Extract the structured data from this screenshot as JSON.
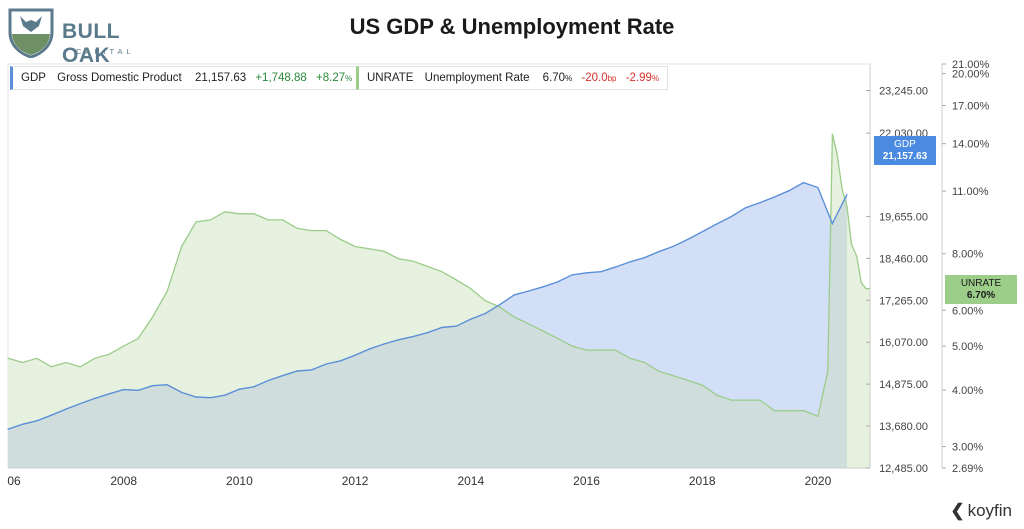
{
  "brand": {
    "name": "BULL OAK",
    "tagline": "CAPITAL",
    "footer_brand": "koyfin"
  },
  "colors": {
    "gdp_line": "#5b8fd8",
    "gdp_fill": "#d2dff7",
    "unrate_line": "#9bcc8a",
    "unrate_fill": "#e6f2df",
    "overlap_fill": "#cfdedc",
    "gdp_badge": "#4a8ae0",
    "unrate_badge": "#9ccd89"
  },
  "legend": {
    "gdp": {
      "ticker": "GDP",
      "name": "Gross Domestic Product",
      "value": "21,157.63",
      "change": "+1,748.88",
      "pct": "+8.27",
      "pct_unit": "%"
    },
    "unrate": {
      "ticker": "UNRATE",
      "name": "Unemployment Rate",
      "value": "6.70",
      "value_unit": "%",
      "change": "-20.0",
      "change_unit": "bp",
      "pct": "-2.99",
      "pct_unit": "%"
    }
  },
  "badges": {
    "gdp": {
      "label": "GDP",
      "value": "21,157.63"
    },
    "unrate": {
      "label": "UNRATE",
      "value": "6.70%"
    }
  },
  "chart_data": {
    "type": "area",
    "title": "US GDP & Unemployment Rate",
    "x_ticks": [
      "06",
      "2008",
      "2010",
      "2012",
      "2014",
      "2016",
      "2018",
      "2020"
    ],
    "x_tick_years": [
      2006,
      2008,
      2010,
      2012,
      2014,
      2016,
      2018,
      2020
    ],
    "xlim": [
      2006,
      2020.9
    ],
    "left_axis": {
      "name": "GDP",
      "ylim": [
        12485,
        24000
      ],
      "ticks": [
        "23,245.00",
        "22,030.00",
        "19,655.00",
        "18,460.00",
        "17,265.00",
        "16,070.00",
        "14,875.00",
        "13,680.00",
        "12,485.00"
      ],
      "tick_values": [
        23245,
        22030,
        19655,
        18460,
        17265,
        16070,
        14875,
        13680,
        12485
      ]
    },
    "right_axis": {
      "name": "UNRATE",
      "scale": "log",
      "ylim": [
        2.69,
        21.0
      ],
      "ticks": [
        "21.00%",
        "20.00%",
        "17.00%",
        "14.00%",
        "11.00%",
        "8.00%",
        "6.00%",
        "5.00%",
        "4.00%",
        "3.00%",
        "2.69%"
      ],
      "tick_values": [
        21,
        20,
        17,
        14,
        11,
        8,
        6,
        5,
        4,
        3,
        2.69
      ]
    },
    "series": [
      {
        "name": "GDP",
        "axis": "left",
        "x": [
          2006.0,
          2006.25,
          2006.5,
          2006.75,
          2007.0,
          2007.25,
          2007.5,
          2007.75,
          2008.0,
          2008.25,
          2008.5,
          2008.75,
          2009.0,
          2009.25,
          2009.5,
          2009.75,
          2010.0,
          2010.25,
          2010.5,
          2010.75,
          2011.0,
          2011.25,
          2011.5,
          2011.75,
          2012.0,
          2012.25,
          2012.5,
          2012.75,
          2013.0,
          2013.25,
          2013.5,
          2013.75,
          2014.0,
          2014.25,
          2014.5,
          2014.75,
          2015.0,
          2015.25,
          2015.5,
          2015.75,
          2016.0,
          2016.25,
          2016.5,
          2016.75,
          2017.0,
          2017.25,
          2017.5,
          2017.75,
          2018.0,
          2018.25,
          2018.5,
          2018.75,
          2019.0,
          2019.25,
          2019.5,
          2019.75,
          2020.0,
          2020.25,
          2020.5
        ],
        "values": [
          13590,
          13730,
          13830,
          13990,
          14160,
          14320,
          14470,
          14600,
          14720,
          14700,
          14830,
          14860,
          14640,
          14510,
          14490,
          14560,
          14730,
          14800,
          14980,
          15120,
          15250,
          15280,
          15450,
          15540,
          15700,
          15880,
          16020,
          16140,
          16230,
          16340,
          16490,
          16530,
          16730,
          16890,
          17140,
          17420,
          17530,
          17650,
          17790,
          17990,
          18050,
          18080,
          18210,
          18360,
          18480,
          18650,
          18800,
          19000,
          19220,
          19440,
          19650,
          19900,
          20050,
          20210,
          20390,
          20620,
          20480,
          19450,
          20280
        ]
      },
      {
        "name": "UNRATE",
        "axis": "right",
        "x": [
          2006.0,
          2006.25,
          2006.5,
          2006.75,
          2007.0,
          2007.25,
          2007.5,
          2007.75,
          2008.0,
          2008.25,
          2008.5,
          2008.75,
          2009.0,
          2009.25,
          2009.5,
          2009.75,
          2010.0,
          2010.25,
          2010.5,
          2010.75,
          2011.0,
          2011.25,
          2011.5,
          2011.75,
          2012.0,
          2012.25,
          2012.5,
          2012.75,
          2013.0,
          2013.25,
          2013.5,
          2013.75,
          2014.0,
          2014.25,
          2014.5,
          2014.75,
          2015.0,
          2015.25,
          2015.5,
          2015.75,
          2016.0,
          2016.25,
          2016.5,
          2016.75,
          2017.0,
          2017.25,
          2017.5,
          2017.75,
          2018.0,
          2018.25,
          2018.5,
          2018.75,
          2019.0,
          2019.25,
          2019.5,
          2019.75,
          2020.0,
          2020.17,
          2020.25,
          2020.33,
          2020.42,
          2020.5,
          2020.58,
          2020.67,
          2020.75,
          2020.83,
          2020.9
        ],
        "values": [
          4.7,
          4.6,
          4.7,
          4.5,
          4.6,
          4.5,
          4.7,
          4.8,
          5.0,
          5.2,
          5.8,
          6.6,
          8.3,
          9.4,
          9.5,
          9.9,
          9.8,
          9.8,
          9.5,
          9.5,
          9.1,
          9.0,
          9.0,
          8.6,
          8.3,
          8.2,
          8.1,
          7.8,
          7.7,
          7.5,
          7.3,
          7.0,
          6.7,
          6.3,
          6.1,
          5.8,
          5.6,
          5.4,
          5.2,
          5.0,
          4.9,
          4.9,
          4.9,
          4.7,
          4.6,
          4.4,
          4.3,
          4.2,
          4.1,
          3.9,
          3.8,
          3.8,
          3.8,
          3.6,
          3.6,
          3.6,
          3.5,
          4.4,
          14.7,
          13.3,
          11.1,
          10.2,
          8.4,
          7.9,
          6.9,
          6.7,
          6.7
        ]
      }
    ]
  }
}
